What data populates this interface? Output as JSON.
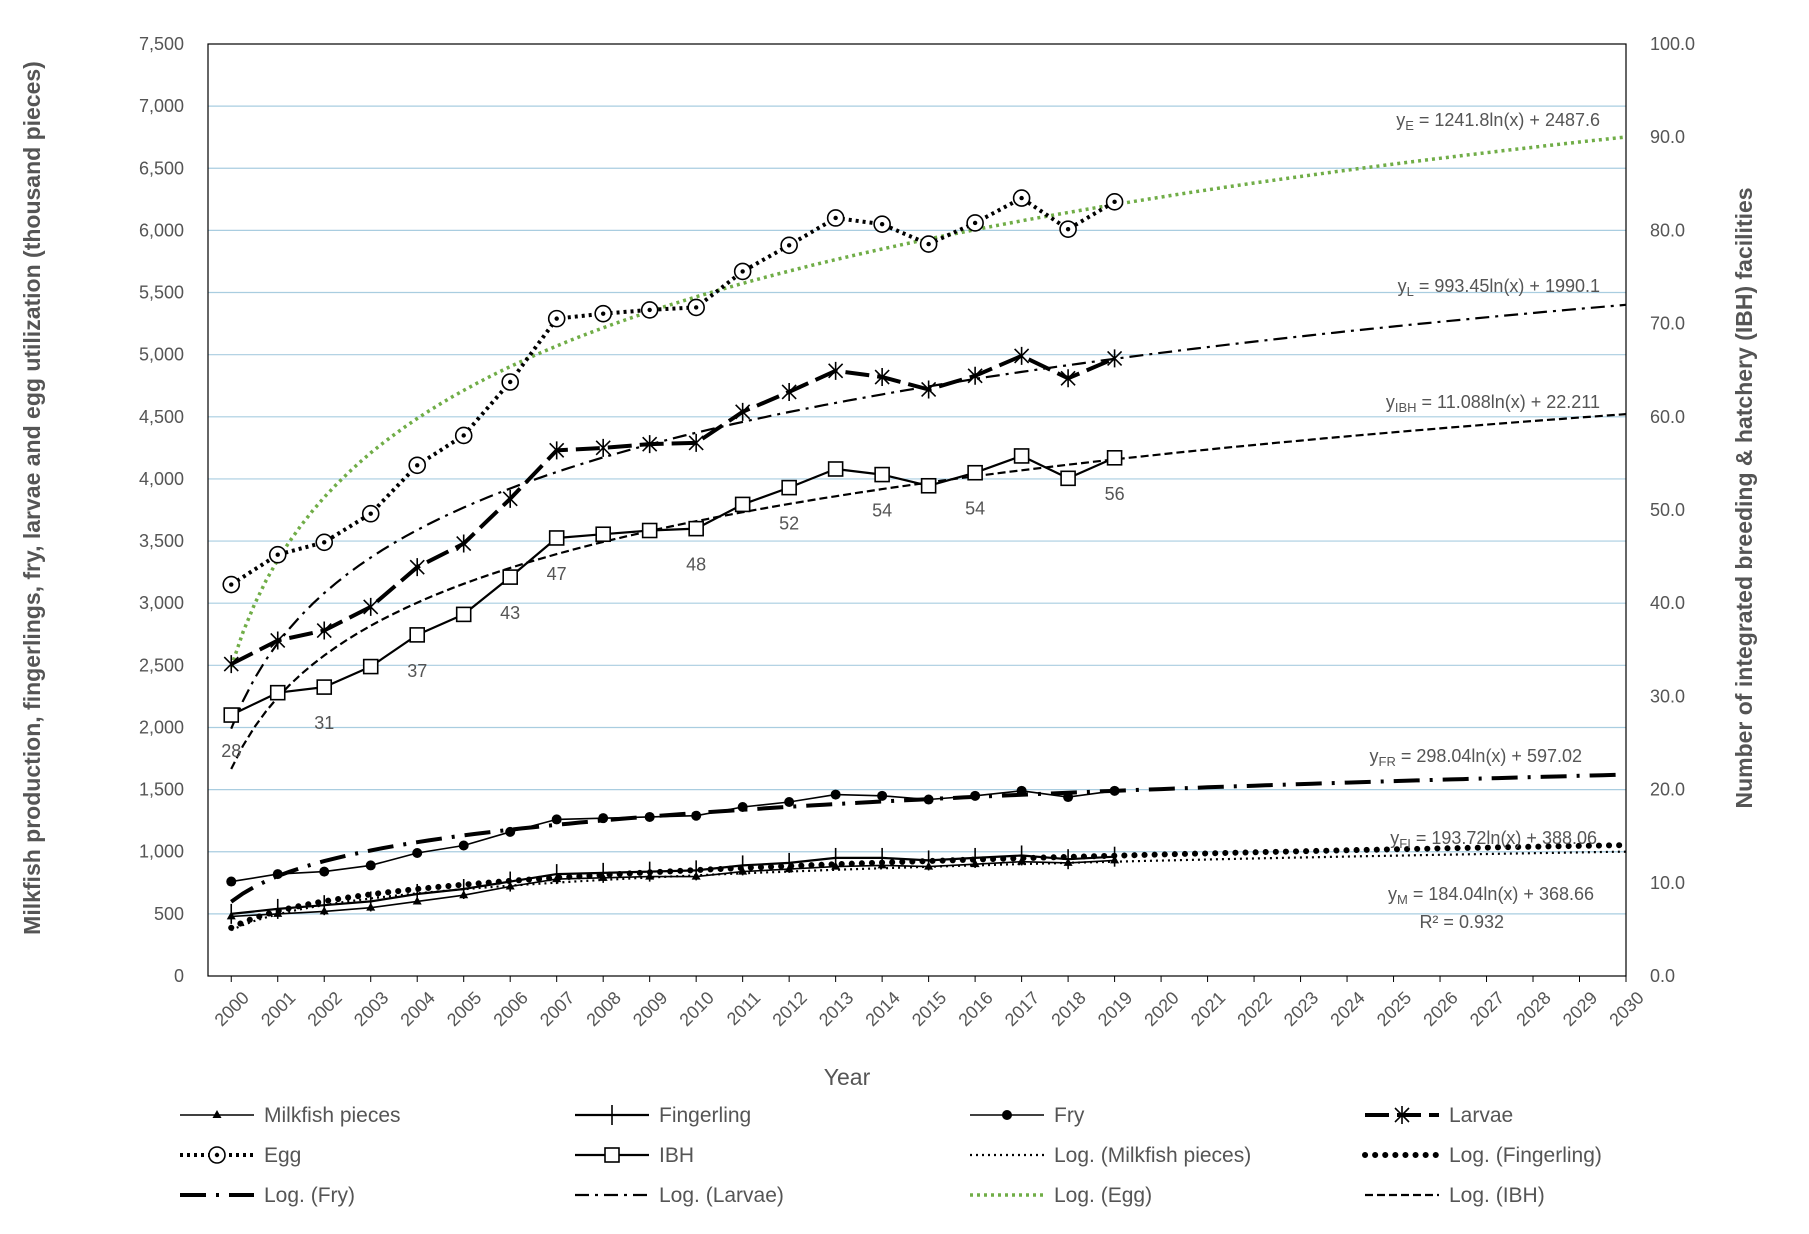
{
  "chart_data": {
    "type": "line",
    "xlabel": "Year",
    "ylabel_left": "Milkfish production, fingerlings, fry, larvae and egg utilization (thousand pieces)",
    "ylabel_right": "Number of integrated breeding & hatchery (IBH) facilities",
    "x_ticks": [
      "2000",
      "2001",
      "2002",
      "2003",
      "2004",
      "2005",
      "2006",
      "2007",
      "2008",
      "2009",
      "2010",
      "2011",
      "2012",
      "2013",
      "2014",
      "2015",
      "2016",
      "2017",
      "2018",
      "2019",
      "2020",
      "2021",
      "2022",
      "2023",
      "2024",
      "2025",
      "2026",
      "2027",
      "2028",
      "2029",
      "2030"
    ],
    "y_left_ticks": [
      "0",
      "500",
      "1,000",
      "1,500",
      "2,000",
      "2,500",
      "3,000",
      "3,500",
      "4,000",
      "4,500",
      "5,000",
      "5,500",
      "6,000",
      "6,500",
      "7,000",
      "7,500"
    ],
    "y_right_ticks": [
      "0.0",
      "10.0",
      "20.0",
      "30.0",
      "40.0",
      "50.0",
      "60.0",
      "70.0",
      "80.0",
      "90.0",
      "100.0"
    ],
    "ylim_left": [
      0,
      7500
    ],
    "ylim_right": [
      0,
      100
    ],
    "grid": "horizontal",
    "legend_position": "bottom",
    "years": [
      2000,
      2001,
      2002,
      2003,
      2004,
      2005,
      2006,
      2007,
      2008,
      2009,
      2010,
      2011,
      2012,
      2013,
      2014,
      2015,
      2016,
      2017,
      2018,
      2019
    ],
    "series": [
      {
        "name": "Milkfish pieces",
        "axis": "left",
        "values": [
          480,
          500,
          520,
          550,
          600,
          650,
          720,
          780,
          790,
          800,
          800,
          840,
          860,
          880,
          890,
          880,
          900,
          920,
          910,
          930
        ]
      },
      {
        "name": "Fingerling",
        "axis": "left",
        "values": [
          500,
          540,
          570,
          600,
          660,
          700,
          760,
          820,
          830,
          840,
          850,
          890,
          910,
          950,
          950,
          930,
          950,
          970,
          940,
          960
        ]
      },
      {
        "name": "Fry",
        "axis": "left",
        "values": [
          760,
          820,
          840,
          890,
          990,
          1050,
          1160,
          1260,
          1270,
          1280,
          1290,
          1360,
          1400,
          1460,
          1450,
          1420,
          1450,
          1490,
          1440,
          1490
        ]
      },
      {
        "name": "Larvae",
        "axis": "left",
        "values": [
          2510,
          2700,
          2780,
          2970,
          3290,
          3480,
          3840,
          4230,
          4250,
          4280,
          4290,
          4540,
          4700,
          4870,
          4820,
          4720,
          4830,
          4990,
          4810,
          4970
        ]
      },
      {
        "name": "Egg",
        "axis": "left",
        "values": [
          3150,
          3390,
          3490,
          3720,
          4110,
          4350,
          4780,
          5290,
          5330,
          5360,
          5380,
          5670,
          5880,
          6100,
          6050,
          5890,
          6060,
          6260,
          6010,
          6230
        ]
      },
      {
        "name": "IBH",
        "axis": "right",
        "values": [
          28,
          30.4,
          31,
          33.2,
          36.6,
          38.8,
          42.8,
          47,
          47.4,
          47.8,
          48,
          50.6,
          52.4,
          54.4,
          53.8,
          52.6,
          54,
          55.8,
          53.4,
          55.6
        ]
      }
    ],
    "trendlines": [
      {
        "name": "Log. (Milkfish pieces)",
        "a": 184.04,
        "b": 368.66,
        "axis": "left"
      },
      {
        "name": "Log. (Fingerling)",
        "a": 193.72,
        "b": 388.06,
        "axis": "left"
      },
      {
        "name": "Log. (Fry)",
        "a": 298.04,
        "b": 597.02,
        "axis": "left"
      },
      {
        "name": "Log. (Larvae)",
        "a": 993.45,
        "b": 1990.1,
        "axis": "left"
      },
      {
        "name": "Log. (Egg)",
        "a": 1241.8,
        "b": 2487.6,
        "axis": "left"
      },
      {
        "name": "Log. (IBH)",
        "a": 11.088,
        "b": 22.211,
        "axis": "right"
      }
    ],
    "ibh_labels": [
      {
        "year": 2000,
        "text": "28"
      },
      {
        "year": 2002,
        "text": "31"
      },
      {
        "year": 2004,
        "text": "37"
      },
      {
        "year": 2006,
        "text": "43"
      },
      {
        "year": 2007,
        "text": "47"
      },
      {
        "year": 2010,
        "text": "48"
      },
      {
        "year": 2012,
        "text": "52"
      },
      {
        "year": 2014,
        "text": "54"
      },
      {
        "year": 2016,
        "text": "54"
      },
      {
        "year": 2019,
        "text": "56"
      }
    ],
    "equations": [
      {
        "sub_prefix": "y",
        "sub": "E",
        "rest": " = 1241.8ln(x) + 2487.6"
      },
      {
        "sub_prefix": "y",
        "sub": "L",
        "rest": " = 993.45ln(x) + 1990.1"
      },
      {
        "sub_prefix": "y",
        "sub": "IBH",
        "rest": " = 11.088ln(x) + 22.211"
      },
      {
        "sub_prefix": "y",
        "sub": "FR",
        "rest": " = 298.04ln(x) + 597.02"
      },
      {
        "sub_prefix": "y",
        "sub": "FI",
        "rest": " = 193.72ln(x) + 388.06"
      },
      {
        "sub_prefix": "y",
        "sub": "M",
        "rest": " = 184.04ln(x) + 368.66"
      }
    ],
    "r_squared": "R² = 0.932",
    "colors": {
      "series": "#000000",
      "egg_trend": "#70ad47",
      "grid": "#a9cde0",
      "text": "#555555"
    }
  }
}
